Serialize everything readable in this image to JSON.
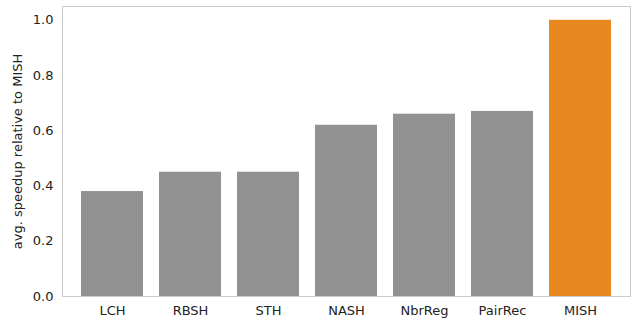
{
  "chart_data": {
    "type": "bar",
    "y_label": "avg. speedup relative to MISH",
    "categories": [
      "LCH",
      "RBSH",
      "STH",
      "NASH",
      "NbrReg",
      "PairRec",
      "MISH"
    ],
    "values": [
      0.38,
      0.45,
      0.45,
      0.62,
      0.66,
      0.67,
      1.0
    ],
    "colors": [
      "#929292",
      "#929292",
      "#929292",
      "#929292",
      "#929292",
      "#929292",
      "#e8891f"
    ],
    "ylim": [
      0,
      1.05
    ],
    "yticks": [
      {
        "value": 0,
        "label": "0.0"
      },
      {
        "value": 0.2,
        "label": "0.2"
      },
      {
        "value": 0.4,
        "label": "0.4"
      },
      {
        "value": 0.6,
        "label": "0.6"
      },
      {
        "value": 0.8,
        "label": "0.8"
      },
      {
        "value": 1.0,
        "label": "1.0"
      }
    ],
    "grid": false
  }
}
